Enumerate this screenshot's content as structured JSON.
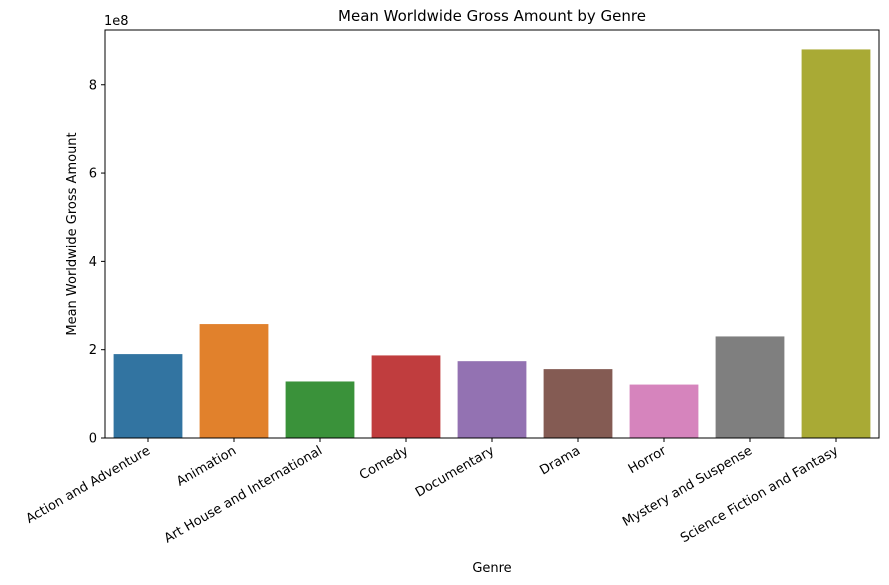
{
  "chart_data": {
    "type": "bar",
    "title": "Mean Worldwide Gross Amount by Genre",
    "xlabel": "Genre",
    "ylabel": "Mean Worldwide Gross Amount",
    "offset_label": "1e8",
    "scale_divisor": 100000000,
    "categories": [
      "Action and Adventure",
      "Animation",
      "Art House and International",
      "Comedy",
      "Documentary",
      "Drama",
      "Horror",
      "Mystery and Suspense",
      "Science Fiction and Fantasy"
    ],
    "values": [
      190000000,
      258000000,
      128000000,
      187000000,
      174000000,
      156000000,
      121000000,
      230000000,
      880000000
    ],
    "colors": [
      "#3274a1",
      "#e1812c",
      "#3a923a",
      "#c03d3e",
      "#9372b2",
      "#845b53",
      "#d684bd",
      "#7f7f7f",
      "#a9aa35"
    ],
    "y_ticks": [
      0,
      200000000,
      400000000,
      600000000,
      800000000
    ],
    "y_tick_labels": [
      "0",
      "2",
      "4",
      "6",
      "8"
    ],
    "ylim": [
      0,
      924000000
    ],
    "grid": false,
    "legend": "none"
  }
}
